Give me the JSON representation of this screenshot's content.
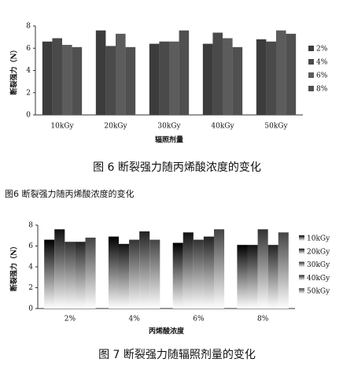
{
  "chart_data": [
    {
      "type": "bar",
      "ylabel": "断裂强力（N）",
      "xlabel": "辐照剂量",
      "caption": "图 6  断裂强力随丙烯酸浓度的变化",
      "categories": [
        "10kGy",
        "20kGy",
        "30kGy",
        "40kGy",
        "50kGy"
      ],
      "series": [
        {
          "name": "2%",
          "color": "#3c3c3c",
          "values": [
            6.6,
            7.6,
            6.4,
            6.4,
            6.8
          ]
        },
        {
          "name": "4%",
          "color": "#4a4a4a",
          "values": [
            6.9,
            6.2,
            6.6,
            7.4,
            6.6
          ]
        },
        {
          "name": "6%",
          "color": "#5c5c5c",
          "values": [
            6.3,
            7.3,
            6.6,
            6.9,
            7.6
          ]
        },
        {
          "name": "8%",
          "color": "#505050",
          "values": [
            6.1,
            6.1,
            7.6,
            6.1,
            7.3
          ]
        }
      ],
      "ylim": [
        0,
        8
      ],
      "yticks": [
        0,
        2,
        4,
        6,
        8
      ],
      "gradient": false
    },
    {
      "type": "bar",
      "ylabel": "断裂强力（N）",
      "xlabel": "丙烯酸浓度",
      "caption": "图 7  断裂强力随辐照剂量的变化",
      "categories": [
        "2%",
        "4%",
        "6%",
        "8%"
      ],
      "series": [
        {
          "name": "10kGy",
          "color": "#000000",
          "values": [
            6.6,
            6.9,
            6.3,
            6.1
          ]
        },
        {
          "name": "20kGy",
          "color": "#111111",
          "values": [
            7.6,
            6.2,
            7.3,
            6.1
          ]
        },
        {
          "name": "30kGy",
          "color": "#333333",
          "values": [
            6.4,
            6.6,
            6.6,
            7.6
          ]
        },
        {
          "name": "40kGy",
          "color": "#222222",
          "values": [
            6.4,
            7.4,
            6.9,
            6.1
          ]
        },
        {
          "name": "50kGy",
          "color": "#444444",
          "values": [
            6.8,
            6.6,
            7.6,
            7.3
          ]
        }
      ],
      "ylim": [
        0,
        8
      ],
      "yticks": [
        0,
        2,
        4,
        6,
        8
      ],
      "gradient": true
    }
  ],
  "document_text": "图6 断裂强力随丙烯酸浓度的变化"
}
